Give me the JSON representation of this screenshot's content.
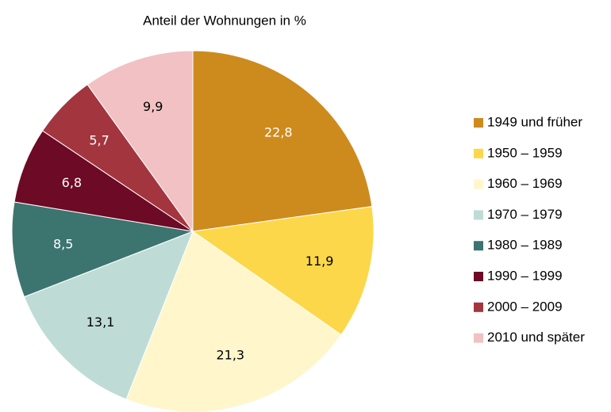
{
  "chart_data": {
    "type": "pie",
    "title": "Anteil der Wohnungen in %",
    "categories": [
      "1949 und früher",
      "1950 – 1959",
      "1960 – 1969",
      "1970 – 1979",
      "1980 – 1989",
      "1990 – 1999",
      "2000 – 2009",
      "2010 und später"
    ],
    "values": [
      22.8,
      11.9,
      21.3,
      13.1,
      8.5,
      6.8,
      5.7,
      9.9
    ],
    "value_labels": [
      "22,8",
      "11,9",
      "21,3",
      "13,1",
      "8,5",
      "6,8",
      "5,7",
      "9,9"
    ],
    "colors": [
      "#cd8b1e",
      "#fdd74a",
      "#fff6cc",
      "#bedcd5",
      "#3c7470",
      "#6d0a25",
      "#a3353f",
      "#f2c1c3"
    ],
    "legend": "right"
  }
}
